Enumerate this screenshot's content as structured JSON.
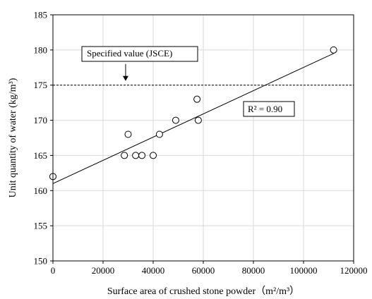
{
  "chart_data": {
    "type": "scatter",
    "title": "",
    "xlabel": "Surface area of crushed stone powder（m²/m³）",
    "ylabel": "Unit quantity of water (kg/m³)",
    "xlim": [
      0,
      120000
    ],
    "ylim": [
      150,
      185
    ],
    "x_ticks": [
      0,
      20000,
      40000,
      60000,
      80000,
      100000,
      120000
    ],
    "y_ticks": [
      150,
      155,
      160,
      165,
      170,
      175,
      180,
      185
    ],
    "x_tick_labels": [
      "0",
      "20000",
      "40000",
      "60000",
      "80000",
      "100000",
      "120000"
    ],
    "y_tick_labels": [
      "150",
      "155",
      "160",
      "165",
      "170",
      "175",
      "180",
      "185"
    ],
    "grid": true,
    "series": [
      {
        "marker": "open-circle",
        "x": [
          0,
          28500,
          30000,
          33000,
          35500,
          40000,
          42500,
          49000,
          57500,
          58000,
          112000
        ],
        "y": [
          162,
          165,
          168,
          165,
          165,
          165,
          168,
          170,
          173,
          170,
          180
        ]
      }
    ],
    "trendline": {
      "x": [
        0,
        112000
      ],
      "y": [
        161,
        179.5
      ],
      "r2_label": "R² = 0.90"
    },
    "reference_line": {
      "y": 175,
      "style": "dashed",
      "label": "Specified value (JSCE)"
    },
    "annotation_arrow": {
      "x": 29000,
      "from_y": 178,
      "to_y": 175.6
    }
  }
}
